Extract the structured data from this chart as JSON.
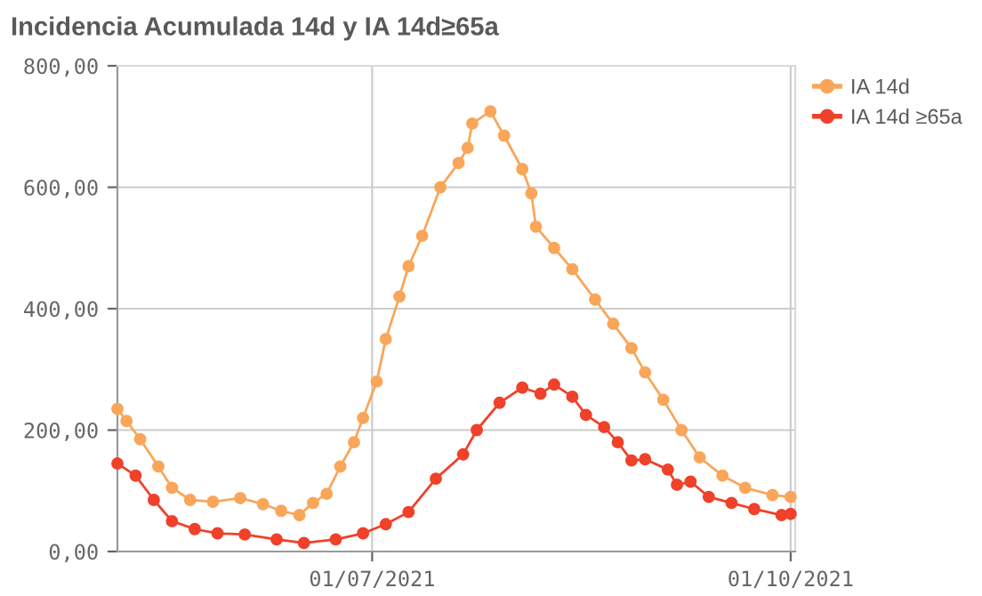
{
  "chart_data": {
    "type": "line",
    "title": "Incidencia Acumulada 14d y IA 14d≥65a",
    "xlim": [
      "2021-05-06",
      "2021-10-02"
    ],
    "xticks": [
      {
        "value": "2021-07-01",
        "label": "01/07/2021"
      },
      {
        "value": "2021-10-01",
        "label": "01/10/2021"
      }
    ],
    "ylim": [
      0,
      800
    ],
    "yticks": [
      {
        "value": 0,
        "label": "0,00"
      },
      {
        "value": 200,
        "label": "200,00"
      },
      {
        "value": 400,
        "label": "400,00"
      },
      {
        "value": 600,
        "label": "600,00"
      },
      {
        "value": 800,
        "label": "800,00"
      }
    ],
    "grid": true,
    "legend": "top right",
    "marker": "circle",
    "line_style": "solid",
    "series": [
      {
        "name": "IA 14d",
        "color": "#f9a65a",
        "x": [
          "2021-05-06",
          "2021-05-08",
          "2021-05-11",
          "2021-05-15",
          "2021-05-18",
          "2021-05-22",
          "2021-05-27",
          "2021-06-02",
          "2021-06-07",
          "2021-06-11",
          "2021-06-15",
          "2021-06-18",
          "2021-06-21",
          "2021-06-24",
          "2021-06-27",
          "2021-06-29",
          "2021-07-02",
          "2021-07-04",
          "2021-07-07",
          "2021-07-09",
          "2021-07-12",
          "2021-07-16",
          "2021-07-20",
          "2021-07-22",
          "2021-07-23",
          "2021-07-27",
          "2021-07-30",
          "2021-08-03",
          "2021-08-05",
          "2021-08-06",
          "2021-08-10",
          "2021-08-14",
          "2021-08-19",
          "2021-08-23",
          "2021-08-27",
          "2021-08-30",
          "2021-09-03",
          "2021-09-07",
          "2021-09-11",
          "2021-09-16",
          "2021-09-21",
          "2021-09-27",
          "2021-10-01"
        ],
        "values": [
          235,
          215,
          185,
          140,
          105,
          85,
          82,
          88,
          78,
          67,
          60,
          80,
          95,
          140,
          180,
          220,
          280,
          350,
          420,
          470,
          520,
          600,
          640,
          665,
          705,
          725,
          685,
          630,
          590,
          535,
          500,
          465,
          415,
          375,
          335,
          295,
          250,
          200,
          155,
          125,
          105,
          93,
          90
        ]
      },
      {
        "name": "IA 14d ≥65a",
        "color": "#f0412a",
        "x": [
          "2021-05-06",
          "2021-05-10",
          "2021-05-14",
          "2021-05-18",
          "2021-05-23",
          "2021-05-28",
          "2021-06-03",
          "2021-06-10",
          "2021-06-16",
          "2021-06-23",
          "2021-06-29",
          "2021-07-04",
          "2021-07-09",
          "2021-07-15",
          "2021-07-21",
          "2021-07-24",
          "2021-07-29",
          "2021-08-03",
          "2021-08-07",
          "2021-08-10",
          "2021-08-14",
          "2021-08-17",
          "2021-08-21",
          "2021-08-24",
          "2021-08-27",
          "2021-08-30",
          "2021-09-04",
          "2021-09-06",
          "2021-09-09",
          "2021-09-13",
          "2021-09-18",
          "2021-09-23",
          "2021-09-29",
          "2021-10-01"
        ],
        "values": [
          145,
          125,
          85,
          50,
          37,
          30,
          28,
          20,
          14,
          20,
          30,
          45,
          65,
          120,
          160,
          200,
          245,
          270,
          260,
          275,
          255,
          225,
          205,
          180,
          150,
          152,
          135,
          110,
          115,
          90,
          80,
          70,
          60,
          62
        ]
      }
    ]
  }
}
